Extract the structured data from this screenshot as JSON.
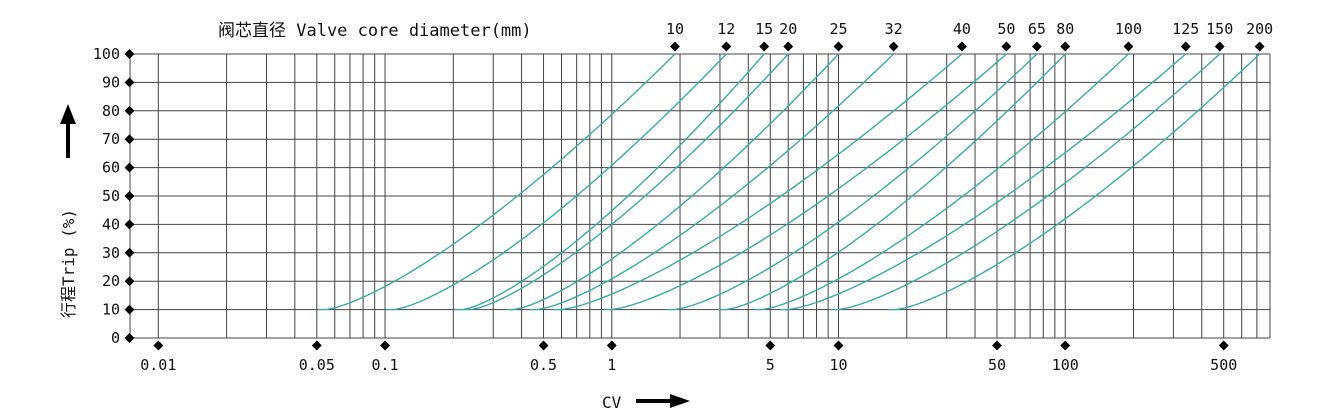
{
  "chart_data": {
    "type": "line",
    "title": "阀芯直径 Valve core diameter(mm)",
    "xlabel": "CV",
    "ylabel": "行程Trip (%)",
    "x_scale": "log",
    "xlim": [
      0.0075,
      800
    ],
    "ylim": [
      0,
      100
    ],
    "grid": true,
    "x_tick_labels": [
      {
        "label": "0.01",
        "value": 0.01
      },
      {
        "label": "0.05",
        "value": 0.05
      },
      {
        "label": "0.1",
        "value": 0.1
      },
      {
        "label": "0.5",
        "value": 0.5
      },
      {
        "label": "1",
        "value": 1
      },
      {
        "label": "5",
        "value": 5
      },
      {
        "label": "10",
        "value": 10
      },
      {
        "label": "50",
        "value": 50
      },
      {
        "label": "100",
        "value": 100
      },
      {
        "label": "500",
        "value": 500
      }
    ],
    "y_ticks": [
      0,
      10,
      20,
      30,
      40,
      50,
      60,
      70,
      80,
      90,
      100
    ],
    "line_color": "#3aa9a7",
    "series": [
      {
        "name": "10",
        "cv_at_10": 0.055,
        "cv_at_100": 1.9
      },
      {
        "name": "12",
        "cv_at_10": 0.11,
        "cv_at_100": 3.2
      },
      {
        "name": "15",
        "cv_at_10": 0.22,
        "cv_at_100": 4.7
      },
      {
        "name": "20",
        "cv_at_10": 0.24,
        "cv_at_100": 6.0
      },
      {
        "name": "25",
        "cv_at_10": 0.37,
        "cv_at_100": 10.0
      },
      {
        "name": "32",
        "cv_at_10": 0.47,
        "cv_at_100": 17.5
      },
      {
        "name": "40",
        "cv_at_10": 0.6,
        "cv_at_100": 35
      },
      {
        "name": "50",
        "cv_at_10": 1.0,
        "cv_at_100": 55
      },
      {
        "name": "65",
        "cv_at_10": 1.9,
        "cv_at_100": 75
      },
      {
        "name": "80",
        "cv_at_10": 3.2,
        "cv_at_100": 100
      },
      {
        "name": "100",
        "cv_at_10": 4.6,
        "cv_at_100": 190
      },
      {
        "name": "125",
        "cv_at_10": 6.0,
        "cv_at_100": 340
      },
      {
        "name": "150",
        "cv_at_10": 10.0,
        "cv_at_100": 480
      },
      {
        "name": "200",
        "cv_at_10": 18.0,
        "cv_at_100": 720
      }
    ]
  }
}
